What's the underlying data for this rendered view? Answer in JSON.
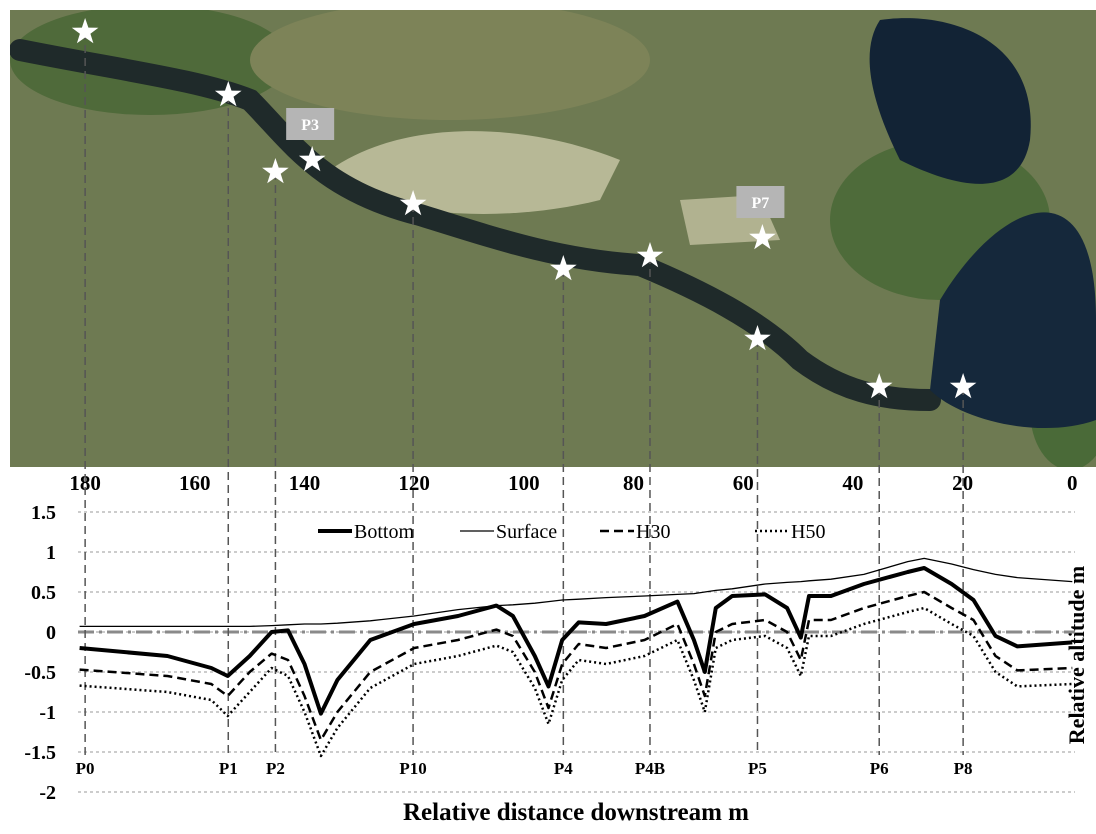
{
  "chart_data": {
    "type": "line",
    "x_label": "Relative distance downstream m",
    "y_label": "Relative altitude m",
    "x": [
      181,
      165,
      157,
      154,
      150,
      146,
      143,
      140,
      137,
      134,
      128,
      120,
      112,
      105,
      102,
      98,
      95.5,
      93,
      90,
      85,
      78,
      72,
      69,
      67,
      65,
      62,
      56,
      52,
      49.5,
      48,
      44,
      38,
      30,
      27,
      22,
      18,
      14,
      10,
      0
    ],
    "series": [
      {
        "name": "Bottom",
        "color": "#000000",
        "style": "thick",
        "values": [
          -0.2,
          -0.3,
          -0.45,
          -0.55,
          -0.3,
          0,
          0.02,
          -0.4,
          -1.02,
          -0.6,
          -0.1,
          0.1,
          0.2,
          0.33,
          0.2,
          -0.3,
          -0.68,
          -0.1,
          0.12,
          0.1,
          0.2,
          0.38,
          -0.1,
          -0.5,
          0.3,
          0.45,
          0.47,
          0.3,
          -0.07,
          0.45,
          0.45,
          0.6,
          0.75,
          0.8,
          0.6,
          0.4,
          -0.05,
          -0.18,
          -0.13
        ]
      },
      {
        "name": "Surface",
        "color": "#000000",
        "style": "thin",
        "values": [
          0.07,
          0.07,
          0.07,
          0.07,
          0.07,
          0.08,
          0.09,
          0.1,
          0.1,
          0.11,
          0.14,
          0.2,
          0.28,
          0.33,
          0.34,
          0.36,
          0.38,
          0.4,
          0.41,
          0.43,
          0.45,
          0.47,
          0.48,
          0.5,
          0.52,
          0.54,
          0.6,
          0.62,
          0.63,
          0.64,
          0.66,
          0.72,
          0.88,
          0.92,
          0.85,
          0.78,
          0.72,
          0.68,
          0.63
        ]
      },
      {
        "name": "H30",
        "color": "#000000",
        "style": "dashed",
        "values": [
          -0.47,
          -0.55,
          -0.65,
          -0.8,
          -0.5,
          -0.27,
          -0.35,
          -0.8,
          -1.35,
          -1,
          -0.5,
          -0.2,
          -0.1,
          0.03,
          -0.05,
          -0.5,
          -0.95,
          -0.4,
          -0.15,
          -0.2,
          -0.1,
          0.1,
          -0.4,
          -0.8,
          0,
          0.1,
          0.15,
          0,
          -0.35,
          0.15,
          0.15,
          0.3,
          0.45,
          0.5,
          0.3,
          0.15,
          -0.3,
          -0.48,
          -0.45
        ]
      },
      {
        "name": "H50",
        "color": "#000000",
        "style": "dotted",
        "values": [
          -0.67,
          -0.75,
          -0.85,
          -1.05,
          -0.75,
          -0.45,
          -0.55,
          -1.0,
          -1.55,
          -1.2,
          -0.7,
          -0.4,
          -0.3,
          -0.17,
          -0.25,
          -0.7,
          -1.15,
          -0.6,
          -0.35,
          -0.4,
          -0.3,
          -0.1,
          -0.6,
          -1.0,
          -0.2,
          -0.1,
          -0.05,
          -0.2,
          -0.55,
          -0.05,
          -0.05,
          0.1,
          0.25,
          0.3,
          0.1,
          -0.05,
          -0.5,
          -0.68,
          -0.65
        ]
      }
    ],
    "xlim": [
      181.3,
      -0.5
    ],
    "xticks": [
      180,
      160,
      140,
      120,
      100,
      80,
      60,
      40,
      20,
      0
    ],
    "ylim": [
      -2,
      1.5
    ],
    "yticks": [
      1.5,
      1,
      0.5,
      0,
      -0.5,
      -1,
      -1.5,
      -2
    ],
    "grid": true,
    "zero_line": true,
    "stations": [
      {
        "label": "P0",
        "x": 180
      },
      {
        "label": "P1",
        "x": 153.9
      },
      {
        "label": "P2",
        "x": 145.3
      },
      {
        "label": "P10",
        "x": 120.2
      },
      {
        "label": "P4",
        "x": 92.8
      },
      {
        "label": "P4B",
        "x": 77.0
      },
      {
        "label": "P5",
        "x": 57.4
      },
      {
        "label": "P6",
        "x": 35.2
      },
      {
        "label": "P8",
        "x": 19.9
      }
    ],
    "photo_points": [
      {
        "label": "P3",
        "x": 138.6
      },
      {
        "label": "P7",
        "x": 56.5
      }
    ]
  }
}
